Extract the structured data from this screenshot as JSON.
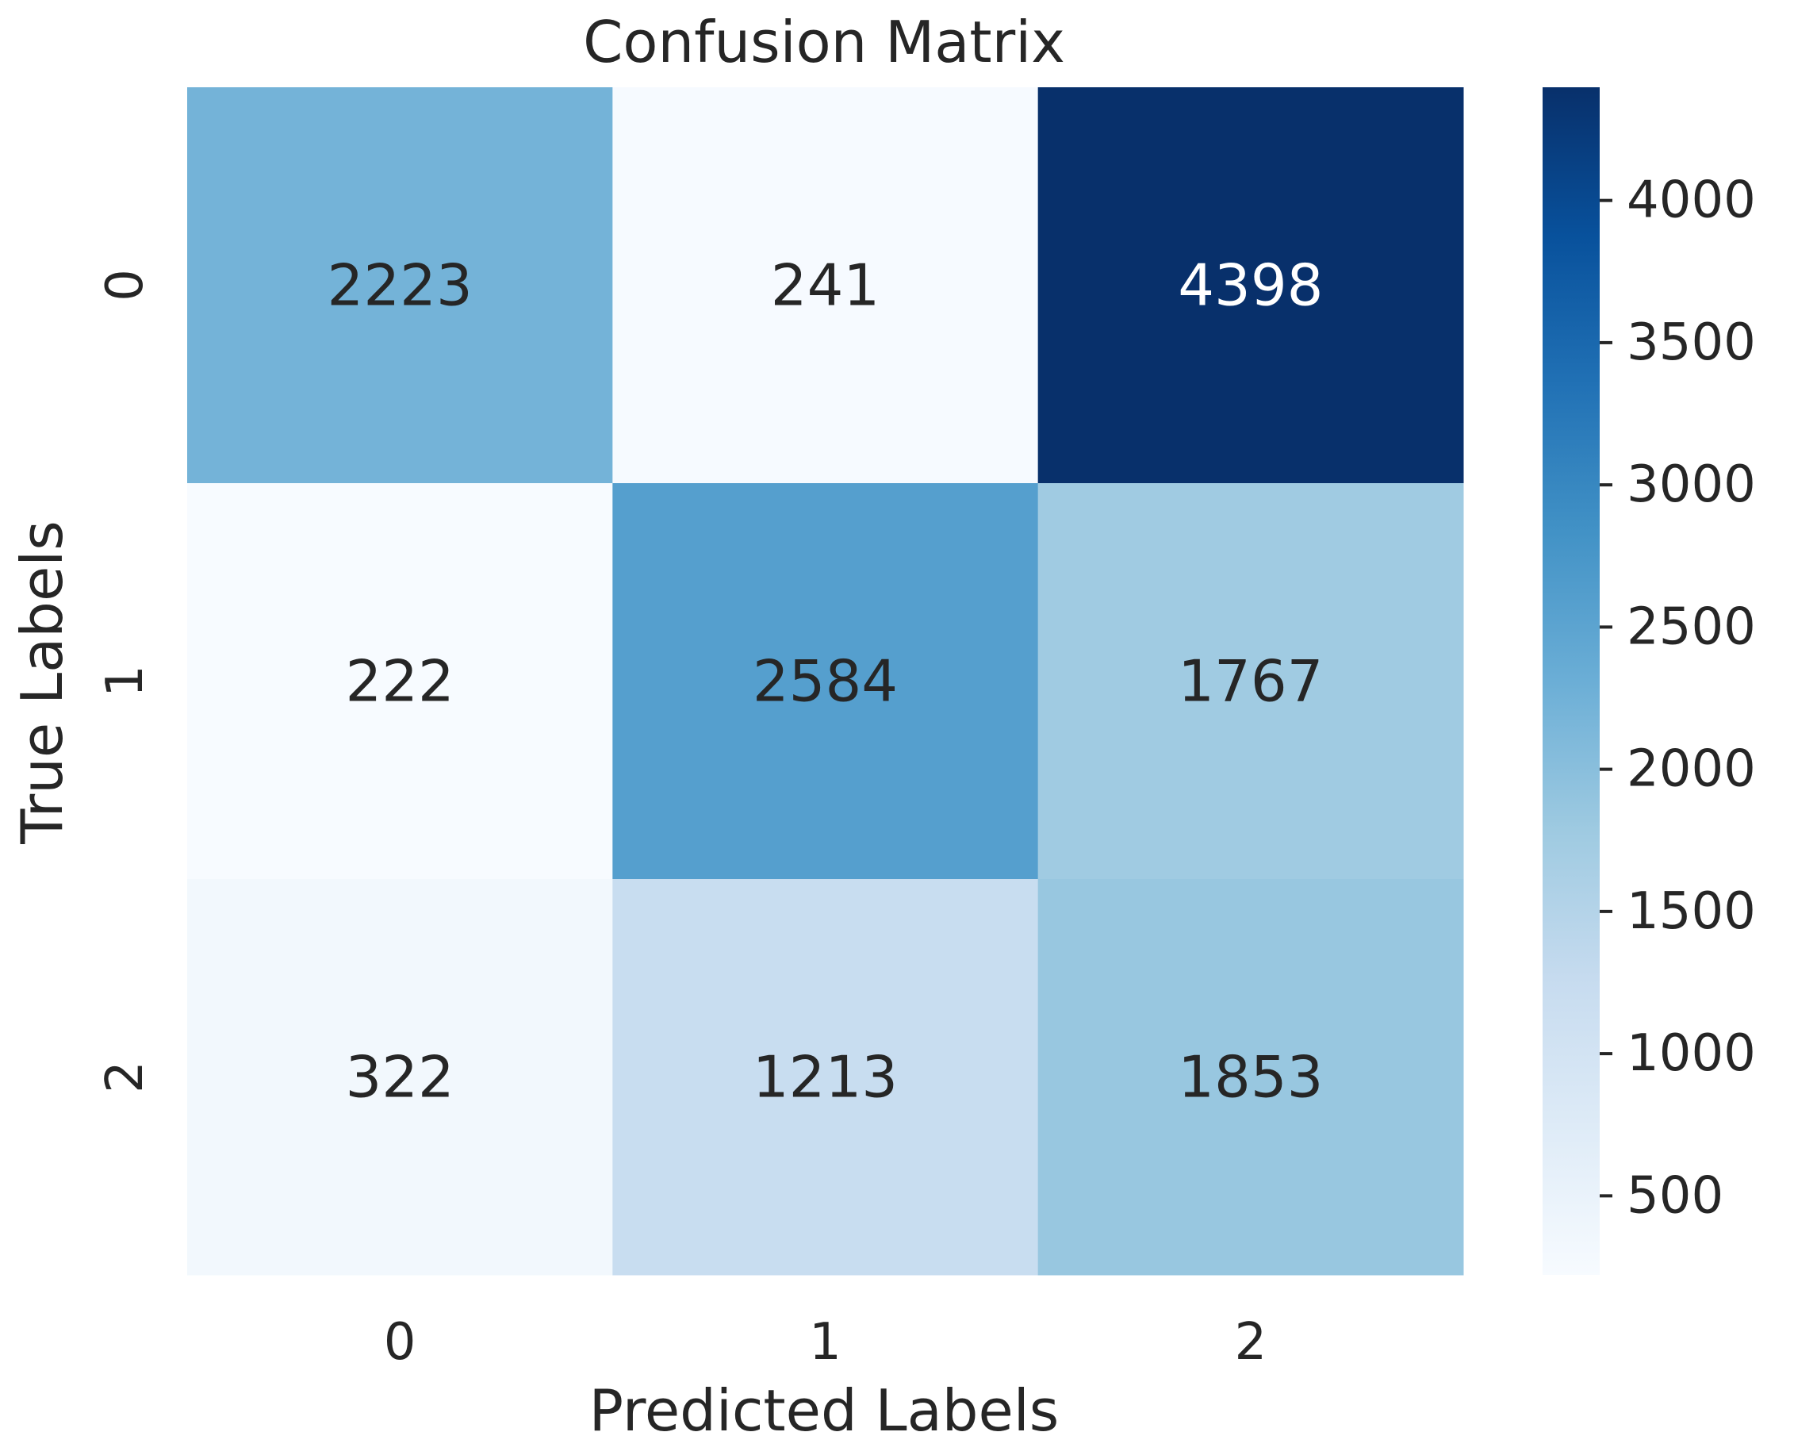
{
  "chart_data": {
    "type": "heatmap",
    "title": "Confusion Matrix",
    "xlabel": "Predicted Labels",
    "ylabel": "True Labels",
    "x_categories": [
      "0",
      "1",
      "2"
    ],
    "y_categories": [
      "0",
      "1",
      "2"
    ],
    "values": [
      [
        2223,
        241,
        4398
      ],
      [
        222,
        2584,
        1767
      ],
      [
        322,
        1213,
        1853
      ]
    ],
    "colormap": "Blues",
    "color_low": "#f7fbff",
    "color_high": "#08306b",
    "colorbar": {
      "range": [
        222,
        4398
      ],
      "ticks": [
        500,
        1000,
        1500,
        2000,
        2500,
        3000,
        3500,
        4000
      ],
      "tick_labels": [
        "500",
        "1000",
        "1500",
        "2000",
        "2500",
        "3000",
        "3500",
        "4000"
      ],
      "placement": "right"
    },
    "annotations": true,
    "grid": false
  }
}
